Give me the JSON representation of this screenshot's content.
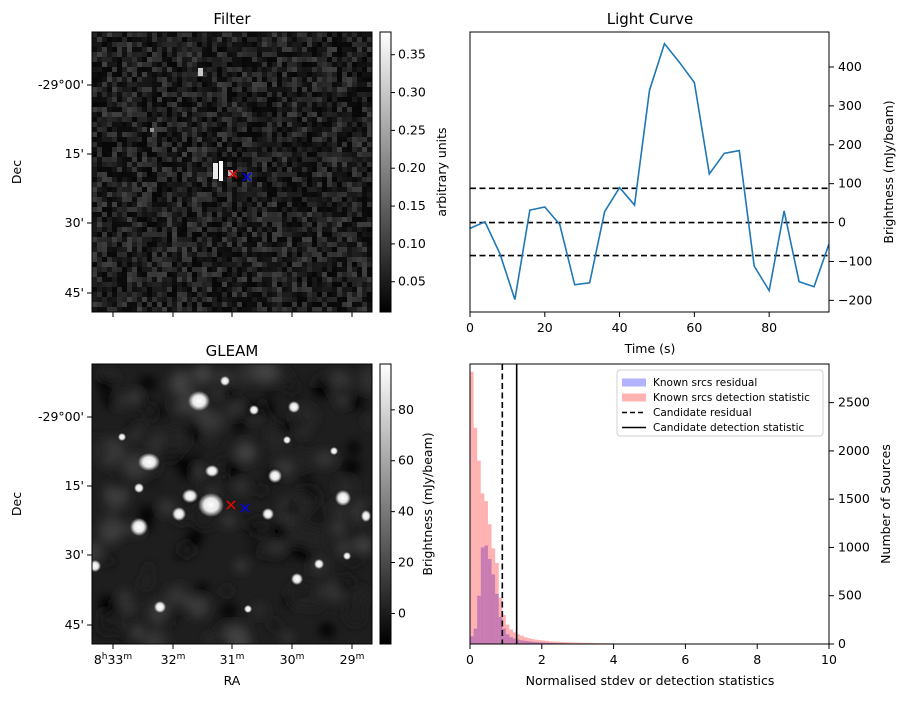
{
  "chart_data": [
    {
      "type": "heatmap",
      "title": "Filter",
      "xlabel": "",
      "ylabel": "Dec",
      "ytick_labels": [
        "-29°00'",
        "15'",
        "30'",
        "45'"
      ],
      "colorbar": {
        "label": "arbitrary units",
        "ticks": [
          "0.05",
          "0.10",
          "0.15",
          "0.20",
          "0.25",
          "0.30",
          "0.35"
        ],
        "range": [
          0.01,
          0.38
        ]
      },
      "markers": [
        {
          "symbol": "x",
          "color": "#ff0000"
        },
        {
          "symbol": "x",
          "color": "#0000ff"
        }
      ]
    },
    {
      "type": "line",
      "title": "Light Curve",
      "xlabel": "Time (s)",
      "ylabel": "Brightness (mJy/beam)",
      "xlim": [
        0,
        96
      ],
      "ylim": [
        -230,
        490
      ],
      "x_ticks": [
        0,
        20,
        40,
        60,
        80
      ],
      "y_ticks": [
        -200,
        -100,
        0,
        100,
        200,
        300,
        400
      ],
      "series": [
        {
          "color": "#1f77b4",
          "x": [
            0,
            4,
            8,
            12,
            16,
            20,
            24,
            28,
            32,
            36,
            40,
            44,
            48,
            52,
            56,
            60,
            64,
            68,
            72,
            76,
            80,
            84,
            88,
            92,
            96
          ],
          "y": [
            -15,
            2,
            -80,
            -198,
            32,
            40,
            -5,
            -160,
            -155,
            28,
            90,
            45,
            340,
            460,
            412,
            360,
            125,
            178,
            185,
            -112,
            -175,
            30,
            -152,
            -165,
            -55
          ]
        }
      ],
      "hlines": [
        {
          "y": 88,
          "style": "dashed",
          "color": "#000000"
        },
        {
          "y": 0,
          "style": "dashed",
          "color": "#000000"
        },
        {
          "y": -85,
          "style": "dashed",
          "color": "#000000"
        }
      ]
    },
    {
      "type": "heatmap",
      "title": "GLEAM",
      "xlabel": "RA",
      "ylabel": "Dec",
      "xtick_labels": [
        "8h33m",
        "32m",
        "31m",
        "30m",
        "29m"
      ],
      "ytick_labels": [
        "-29°00'",
        "15'",
        "30'",
        "45'"
      ],
      "colorbar": {
        "label": "Brightness (mJy/beam)",
        "ticks": [
          "0",
          "20",
          "40",
          "60",
          "80"
        ],
        "range": [
          -12,
          98
        ]
      },
      "markers": [
        {
          "symbol": "x",
          "color": "#ff0000"
        },
        {
          "symbol": "x",
          "color": "#0000ff"
        }
      ]
    },
    {
      "type": "histogram",
      "title": "",
      "xlabel": "Normalised stdev or detection statistics",
      "ylabel": "Number of Sources",
      "xlim": [
        0,
        10
      ],
      "ylim": [
        0,
        2900
      ],
      "x_ticks": [
        0,
        2,
        4,
        6,
        8,
        10
      ],
      "y_ticks": [
        0,
        500,
        1000,
        1500,
        2000,
        2500
      ],
      "bin_width": 0.1,
      "series": [
        {
          "name": "Known srcs residual",
          "color": "#0000ff",
          "bin_start": 0,
          "values": [
            80,
            160,
            500,
            1000,
            1020,
            880,
            720,
            520,
            280,
            160,
            100,
            70,
            55,
            45,
            38,
            32,
            28,
            24,
            20,
            18,
            15,
            13,
            11,
            10,
            9,
            8,
            7,
            6,
            5,
            5
          ]
        },
        {
          "name": "Known srcs detection statistic",
          "color": "#ff0000",
          "bin_start": 0,
          "values": [
            2820,
            2240,
            1900,
            1560,
            1480,
            1240,
            990,
            840,
            480,
            300,
            200,
            150,
            120,
            100,
            85,
            70,
            60,
            52,
            45,
            40,
            36,
            32,
            28,
            26,
            24,
            22,
            20,
            18,
            16,
            15,
            14,
            13,
            12,
            11,
            10,
            9,
            8,
            8,
            7,
            7
          ]
        }
      ],
      "vlines": [
        {
          "name": "Candidate residual",
          "x": 0.9,
          "style": "dashed",
          "color": "#000000"
        },
        {
          "name": "Candidate detection statistic",
          "x": 1.3,
          "style": "solid",
          "color": "#000000"
        }
      ],
      "legend_position": "upper-right"
    }
  ]
}
